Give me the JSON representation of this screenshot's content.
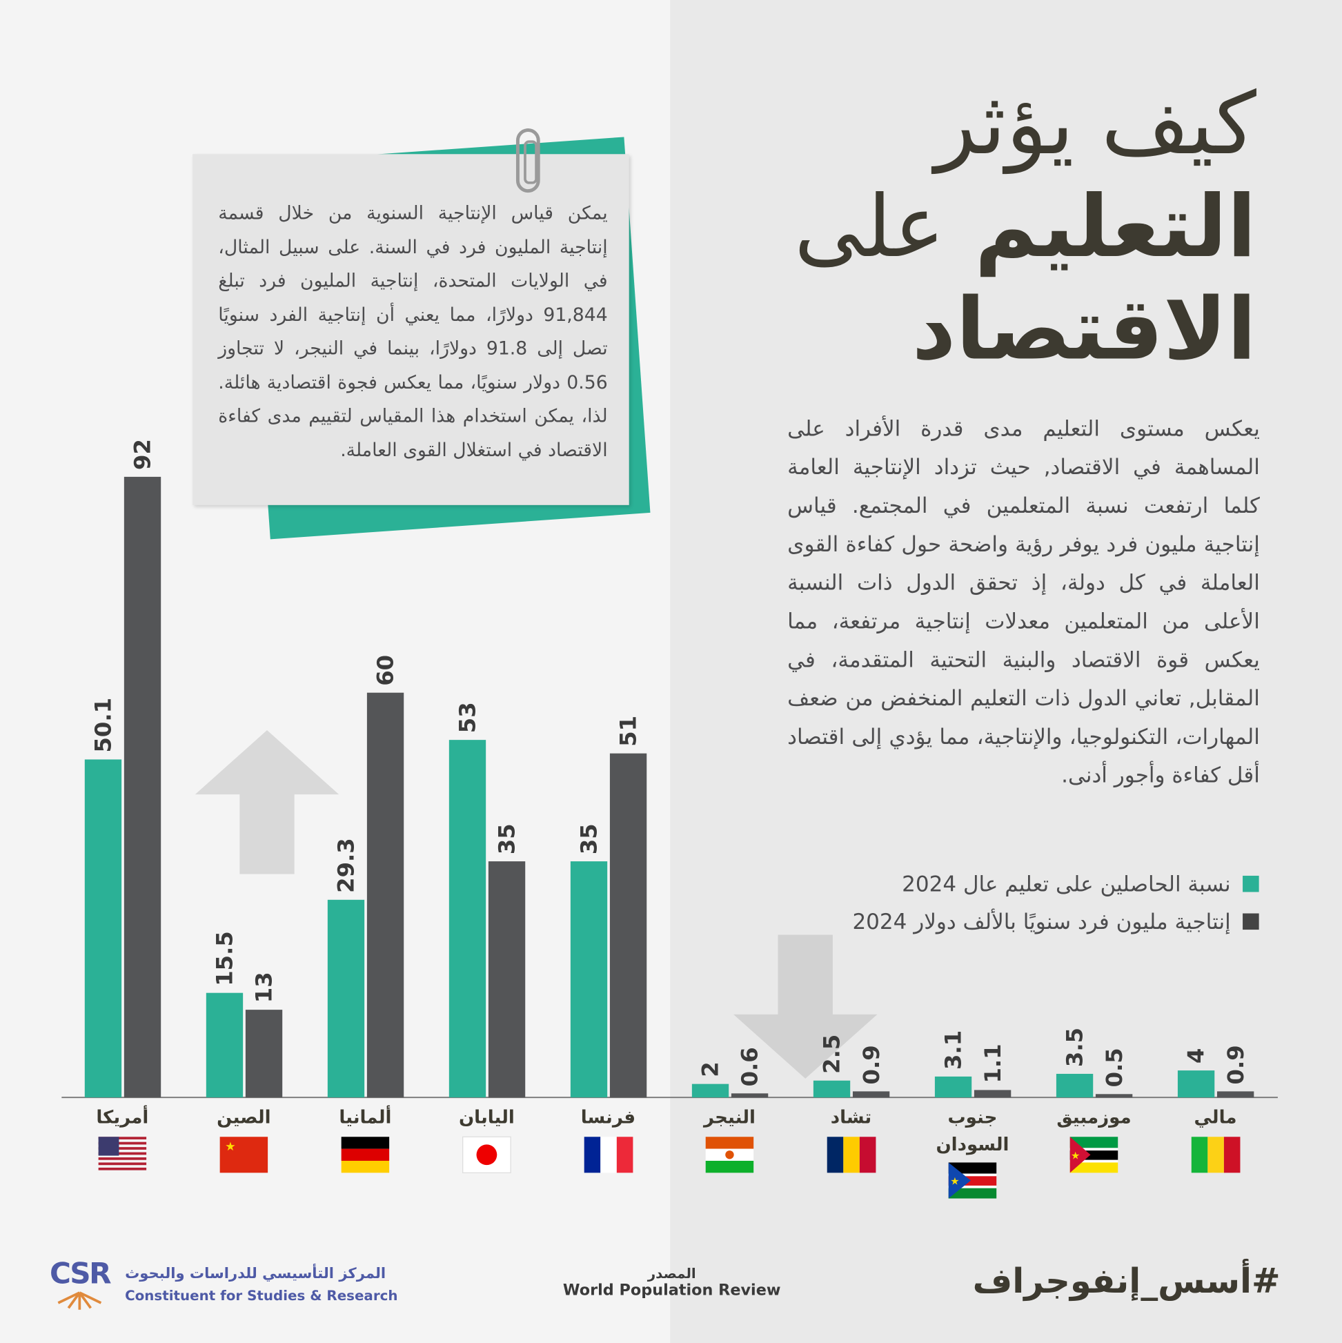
{
  "title": {
    "line1": "كيف يؤثر",
    "line2_bold": "التعليم",
    "line2_light": "على",
    "line3": "الاقتصاد"
  },
  "intro": "يعكس مستوى التعليم مدى قدرة الأفراد على المساهمة في الاقتصاد, حيث تزداد الإنتاجية العامة كلما ارتفعت نسبة المتعلمين في المجتمع. قياس إنتاجية مليون فرد يوفر رؤية واضحة حول كفاءة القوى العاملة في كل دولة، إذ تحقق الدول ذات النسبة الأعلى من المتعلمين معدلات إنتاجية مرتفعة، مما يعكس قوة الاقتصاد والبنية التحتية المتقدمة، في المقابل, تعاني الدول ذات التعليم المنخفض من ضعف المهارات، التكنولوجيا، والإنتاجية، مما يؤدي إلى اقتصاد أقل كفاءة وأجور أدنى.",
  "note": "يمكن قياس الإنتاجية السنوية من خلال قسمة إنتاجية المليون فرد في السنة. على سبيل المثال، في الولايات المتحدة، إنتاجية المليون فرد تبلغ 91,844 دولارًا، مما يعني أن إنتاجية الفرد سنويًا تصل إلى 91.8 دولارًا، بينما في النيجر، لا تتجاوز 0.56 دولار سنويًا، مما يعكس فجوة اقتصادية هائلة. لذا، يمكن استخدام هذا المقياس لتقييم مدى كفاءة الاقتصاد في استغلال القوى العاملة.",
  "chart_data": {
    "type": "bar",
    "categories": [
      "أمريكا",
      "الصين",
      "ألمانيا",
      "اليابان",
      "فرنسا",
      "النيجر",
      "تشاد",
      "جنوب السودان",
      "موزمبيق",
      "مالي"
    ],
    "flags": [
      "us",
      "cn",
      "de",
      "jp",
      "fr",
      "ne",
      "td",
      "ss",
      "mz",
      "ml"
    ],
    "series": [
      {
        "name": "نسبة الحاصلين على تعليم عال 2024",
        "color": "#2bb196",
        "values": [
          50.1,
          15.5,
          29.3,
          53,
          35,
          2,
          2.5,
          3.1,
          3.5,
          4
        ],
        "labels": [
          "50.1",
          "15.5",
          "29.3",
          "53",
          "35",
          "2",
          "2.5",
          "3.1",
          "3.5",
          "4"
        ]
      },
      {
        "name": "إنتاجية مليون فرد سنويًا بالألف دولار 2024",
        "color": "#545557",
        "values": [
          92,
          13,
          60,
          35,
          51,
          0.6,
          0.9,
          1.1,
          0.5,
          0.9
        ],
        "labels": [
          "92",
          "13",
          "60",
          "35",
          "51",
          "0.6",
          "0.9",
          "1.1",
          "0.5",
          "0.9"
        ]
      }
    ],
    "ylim": [
      0,
      92
    ],
    "grid": false,
    "legend": "right"
  },
  "footer": {
    "hashtag": "#أسس_إنفوجراف",
    "source_label": "المصدر",
    "source": "World Population Review",
    "logo_text": "CSR",
    "org_ar": "المركز التأسيسي للدراسات والبحوث",
    "org_en": "Constituent for Studies & Research"
  }
}
